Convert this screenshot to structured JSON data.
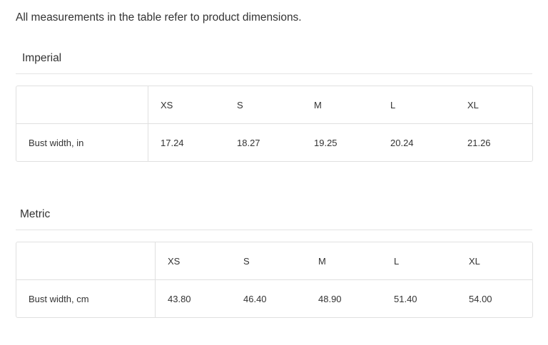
{
  "intro": "All measurements in the table refer to product dimensions.",
  "tables": [
    {
      "title": "Imperial",
      "sizes": [
        "XS",
        "S",
        "M",
        "L",
        "XL"
      ],
      "row_label": "Bust width, in",
      "values": [
        "17.24",
        "18.27",
        "19.25",
        "20.24",
        "21.26"
      ]
    },
    {
      "title": "Metric",
      "sizes": [
        "XS",
        "S",
        "M",
        "L",
        "XL"
      ],
      "row_label": "Bust width, cm",
      "values": [
        "43.80",
        "46.40",
        "48.90",
        "51.40",
        "54.00"
      ]
    }
  ]
}
